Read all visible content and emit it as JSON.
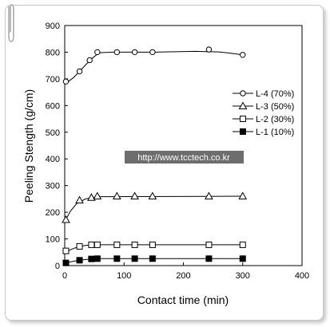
{
  "chart_data": {
    "type": "line",
    "xlabel": "Contact time (min)",
    "ylabel": "Peeling Stength (g/cm)",
    "xlim": [
      0,
      400
    ],
    "ylim": [
      0,
      900
    ],
    "xticks": [
      0,
      100,
      200,
      300,
      400
    ],
    "yticks": [
      0,
      100,
      200,
      300,
      400,
      500,
      600,
      700,
      800,
      900
    ],
    "grid": false,
    "legend_position": "right",
    "series": [
      {
        "name": "L-4 (70%)",
        "marker": "circle-open",
        "x": [
          2,
          25,
          42,
          55,
          88,
          118,
          148,
          243,
          300
        ],
        "y": [
          690,
          728,
          770,
          800,
          800,
          800,
          800,
          810,
          790
        ],
        "curve": [
          [
            0,
            680
          ],
          [
            15,
            705
          ],
          [
            30,
            740
          ],
          [
            45,
            775
          ],
          [
            58,
            798
          ],
          [
            80,
            800
          ],
          [
            150,
            800
          ],
          [
            220,
            803
          ],
          [
            260,
            801
          ],
          [
            280,
            796
          ],
          [
            300,
            790
          ]
        ]
      },
      {
        "name": "L-3 (50%)",
        "marker": "triangle-open",
        "x": [
          2,
          25,
          45,
          55,
          88,
          118,
          148,
          243,
          300
        ],
        "y": [
          172,
          245,
          255,
          260,
          260,
          260,
          260,
          260,
          260
        ],
        "curve": [
          [
            0,
            165
          ],
          [
            10,
            205
          ],
          [
            20,
            232
          ],
          [
            35,
            250
          ],
          [
            55,
            258
          ],
          [
            300,
            260
          ]
        ]
      },
      {
        "name": "L-2 (30%)",
        "marker": "square-open",
        "x": [
          2,
          25,
          45,
          55,
          88,
          118,
          148,
          243,
          300
        ],
        "y": [
          55,
          72,
          78,
          78,
          78,
          78,
          78,
          78,
          78
        ],
        "curve": [
          [
            0,
            48
          ],
          [
            12,
            62
          ],
          [
            25,
            72
          ],
          [
            40,
            77
          ],
          [
            55,
            78
          ],
          [
            300,
            78
          ]
        ]
      },
      {
        "name": "L-1 (10%)",
        "marker": "square-filled",
        "x": [
          2,
          25,
          45,
          55,
          88,
          118,
          148,
          243,
          300
        ],
        "y": [
          10,
          20,
          25,
          26,
          26,
          26,
          26,
          26,
          26
        ],
        "curve": [
          [
            0,
            8
          ],
          [
            12,
            15
          ],
          [
            25,
            20
          ],
          [
            45,
            25
          ],
          [
            60,
            26
          ],
          [
            300,
            26
          ]
        ]
      }
    ]
  },
  "watermark": "http://www.tcctech.co.kr",
  "colors": {
    "line": "#000000",
    "frame_border": "#c8c8c8",
    "watermark_bg": "#6d6d6d",
    "watermark_text": "#ffffff"
  }
}
